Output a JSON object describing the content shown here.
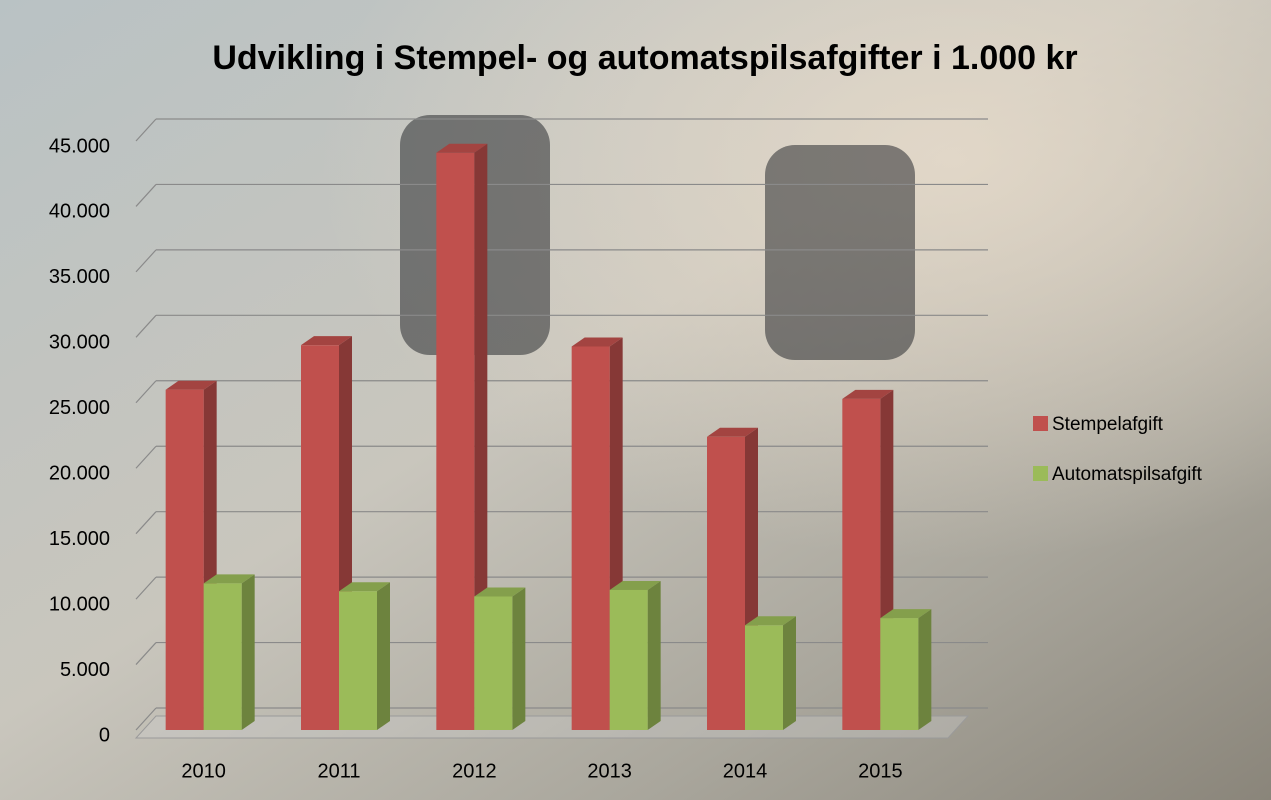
{
  "chart_data": {
    "type": "bar3d",
    "title": "Udvikling i Stempel- og automatspilsafgifter i 1.000 kr",
    "categories": [
      "2010",
      "2011",
      "2012",
      "2013",
      "2014",
      "2015"
    ],
    "series": [
      {
        "name": "Stempelafgift",
        "color": "#c0504d",
        "values": [
          26000,
          29400,
          44100,
          29300,
          22400,
          25300
        ]
      },
      {
        "name": "Automatspilsafgift",
        "color": "#9bbb59",
        "values": [
          11200,
          10600,
          10200,
          10700,
          8000,
          8550
        ]
      }
    ],
    "ylim": [
      0,
      45000
    ],
    "yticks": [
      0,
      {
        "value": 5000,
        "label": "5.000"
      },
      {
        "value": 10000,
        "label": "10.000"
      },
      {
        "value": 15000,
        "label": "15.000"
      },
      {
        "value": 20000,
        "label": "20.000"
      },
      {
        "value": 25000,
        "label": "25.000"
      },
      {
        "value": 30000,
        "label": "30.000"
      },
      {
        "value": 35000,
        "label": "35.000"
      },
      {
        "value": 40000,
        "label": "40.000"
      },
      {
        "value": 45000,
        "label": "45.000"
      }
    ],
    "grid": true,
    "legend": "right"
  }
}
